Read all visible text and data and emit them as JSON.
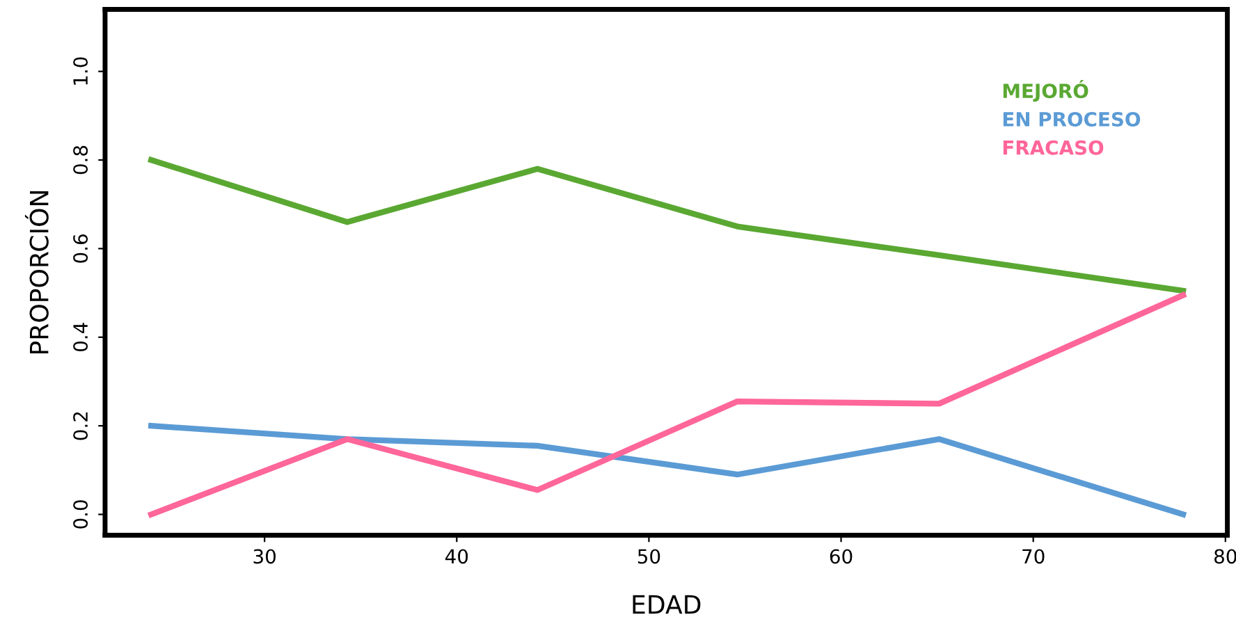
{
  "chart_data": {
    "type": "line",
    "xlabel": "EDAD",
    "ylabel": "PROPORCIÓN",
    "xlim": [
      21.7,
      80.1
    ],
    "xticks": [
      30,
      40,
      50,
      60,
      70,
      80
    ],
    "ylim": [
      -0.047,
      1.14
    ],
    "yticks": [
      {
        "value": 0,
        "label": "0.0"
      },
      0.2,
      0.4,
      0.6,
      0.8,
      {
        "value": 1,
        "label": "1.0"
      }
    ],
    "grid": false,
    "legend": "top right",
    "marker": "none",
    "line_style": "solid",
    "series": [
      {
        "name": "MEJORÓ",
        "color": "#5aa832",
        "x": [
          24.1,
          34.3,
          44.2,
          54.6,
          65.1,
          77.8
        ],
        "values": [
          0.8,
          0.66,
          0.78,
          0.65,
          0.585,
          0.505
        ]
      },
      {
        "name": "EN PROCESO",
        "color": "#5b9bd5",
        "x": [
          24.1,
          34.3,
          44.2,
          54.6,
          65.1,
          77.8
        ],
        "values": [
          0.2,
          0.17,
          0.155,
          0.09,
          0.17,
          0.0
        ]
      },
      {
        "name": "FRACASO",
        "color": "#ff6699",
        "x": [
          24.1,
          34.3,
          44.2,
          54.6,
          65.1,
          77.8
        ],
        "values": [
          0.0,
          0.17,
          0.055,
          0.255,
          0.25,
          0.495
        ]
      }
    ]
  }
}
